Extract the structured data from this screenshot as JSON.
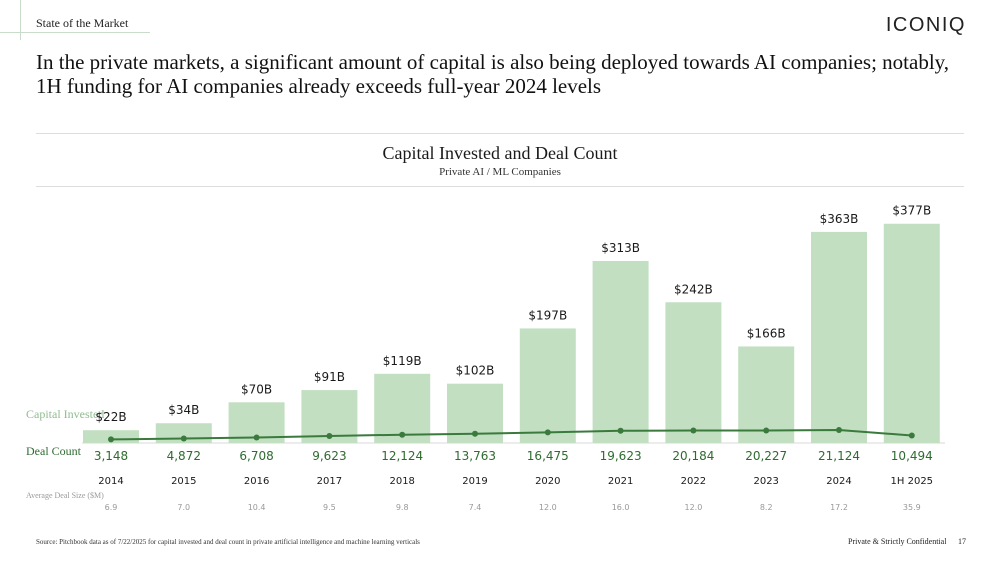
{
  "header": {
    "section": "State of the Market",
    "logo": "ICONIQ",
    "headline": "In the private markets, a significant amount of capital is also being deployed towards AI companies; notably, 1H funding for AI companies already exceeds full-year 2024 levels"
  },
  "row_labels": {
    "capital": "Capital Invested",
    "deal": "Deal Count",
    "avg": "Average Deal Size ($M)"
  },
  "footer": {
    "source": "Source: Pitchbook data as of 7/22/2025 for capital invested and deal count in private artificial intelligence and machine learning verticals",
    "confidential": "Private & Strictly Confidential",
    "page": "17"
  },
  "colors": {
    "bar": "#c2dfc2",
    "line": "#3a7a3c",
    "deal_text": "#2e6b30",
    "avg_text": "#999999"
  },
  "chart_data": {
    "type": "bar",
    "title": "Capital Invested and Deal Count",
    "subtitle": "Private AI / ML Companies",
    "categories": [
      "2014",
      "2015",
      "2016",
      "2017",
      "2018",
      "2019",
      "2020",
      "2021",
      "2022",
      "2023",
      "2024",
      "1H 2025"
    ],
    "ylim": [
      0,
      380
    ],
    "series": [
      {
        "name": "Capital Invested",
        "values": [
          22,
          34,
          70,
          91,
          119,
          102,
          197,
          313,
          242,
          166,
          363,
          377
        ],
        "labels": [
          "$22B",
          "$34B",
          "$70B",
          "$91B",
          "$119B",
          "$102B",
          "$197B",
          "$313B",
          "$242B",
          "$166B",
          "$363B",
          "$377B"
        ]
      },
      {
        "name": "Deal Count",
        "values": [
          3148,
          4872,
          6708,
          9623,
          12124,
          13763,
          16475,
          19623,
          20184,
          20227,
          21124,
          10494
        ],
        "labels": [
          "3,148",
          "4,872",
          "6,708",
          "9,623",
          "12,124",
          "13,763",
          "16,475",
          "19,623",
          "20,184",
          "20,227",
          "21,124",
          "10,494"
        ]
      },
      {
        "name": "Average Deal Size ($M)",
        "values": [
          6.9,
          7.0,
          10.4,
          9.5,
          9.8,
          7.4,
          12.0,
          16.0,
          12.0,
          8.2,
          17.2,
          35.9
        ],
        "labels": [
          "6.9",
          "7.0",
          "10.4",
          "9.5",
          "9.8",
          "7.4",
          "12.0",
          "16.0",
          "12.0",
          "8.2",
          "17.2",
          "35.9"
        ]
      }
    ]
  }
}
